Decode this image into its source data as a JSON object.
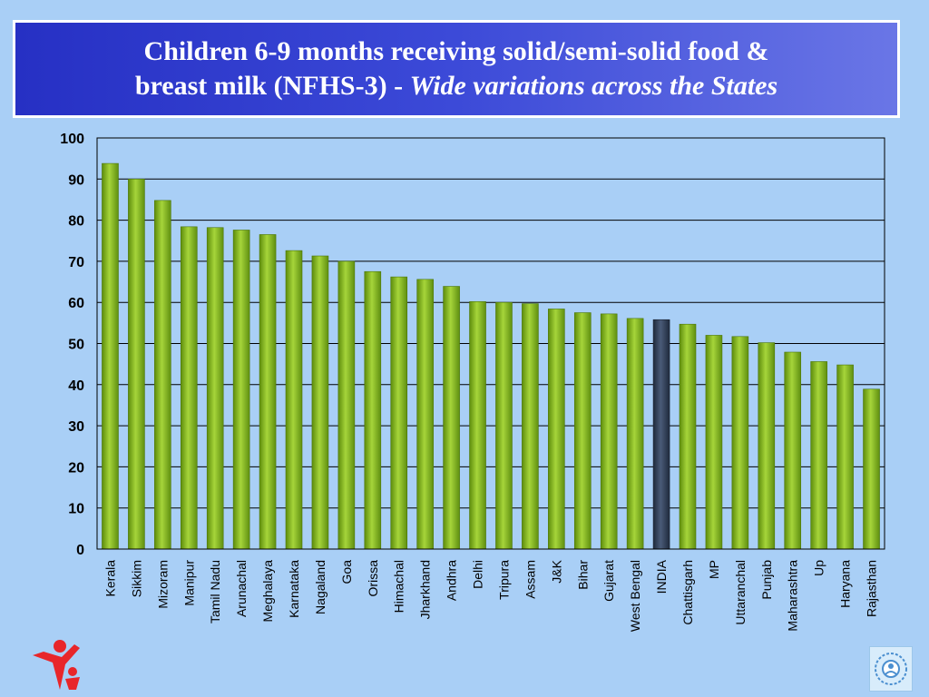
{
  "header": {
    "title_line1": "Children 6-9 months receiving solid/semi-solid food &",
    "title_line2_prefix": "breast milk (NFHS-3) - ",
    "title_line2_italic": "Wide variations across the States"
  },
  "colors": {
    "bar": "#7fb21a",
    "highlight_bar": "#2f3e56",
    "background": "#a9cff6",
    "plot_background": "#a9cff6"
  },
  "chart_data": {
    "type": "bar",
    "categories": [
      "Kerala",
      "Sikkim",
      "Mizoram",
      "Manipur",
      "Tamil Nadu",
      "Arunachal",
      "Meghalaya",
      "Karnataka",
      "Nagaland",
      "Goa",
      "Orissa",
      "Himachal",
      "Jharkhand",
      "Andhra",
      "Delhi",
      "Tripura",
      "Assam",
      "J&K",
      "Bihar",
      "Gujarat",
      "West Bengal",
      "INDIA",
      "Chattisgarh",
      "MP",
      "Uttaranchal",
      "Punjab",
      "Maharashtra",
      "Up",
      "Haryana",
      "Rajasthan"
    ],
    "values": [
      93.8,
      90.0,
      84.8,
      78.4,
      78.2,
      77.6,
      76.5,
      72.6,
      71.3,
      70.0,
      67.5,
      66.2,
      65.6,
      63.9,
      60.2,
      60.0,
      59.7,
      58.4,
      57.5,
      57.2,
      56.1,
      55.8,
      54.7,
      52.0,
      51.7,
      50.2,
      47.9,
      45.6,
      44.8,
      38.9
    ],
    "highlight": "INDIA",
    "yticks": [
      "0",
      "10",
      "20",
      "30",
      "40",
      "50",
      "60",
      "70",
      "80",
      "90",
      "100"
    ],
    "ylim": [
      0,
      100
    ],
    "grid": true,
    "xlabel": "",
    "ylabel": ""
  }
}
